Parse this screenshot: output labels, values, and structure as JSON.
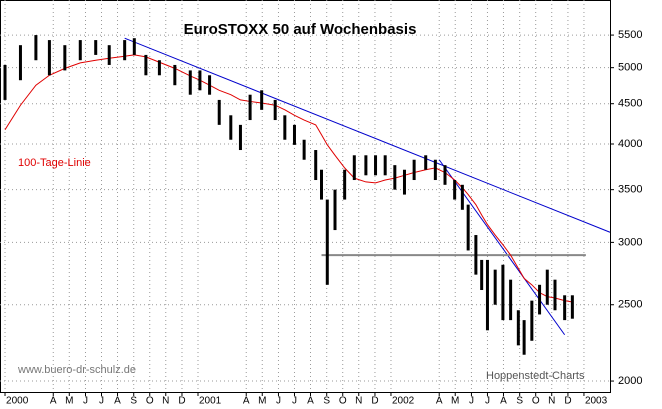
{
  "chart_data": {
    "type": "ohlc",
    "title": "EuroSTOXX 50 auf Wochenbasis",
    "x": [
      2000.0,
      2000.08,
      2000.16,
      2000.23,
      2000.31,
      2000.39,
      2000.47,
      2000.54,
      2000.62,
      2000.67,
      2000.73,
      2000.8,
      2000.88,
      2000.96,
      2001.01,
      2001.06,
      2001.11,
      2001.17,
      2001.22,
      2001.27,
      2001.33,
      2001.4,
      2001.45,
      2001.5,
      2001.55,
      2001.61,
      2001.64,
      2001.67,
      2001.71,
      2001.76,
      2001.81,
      2001.87,
      2001.92,
      2001.97,
      2002.02,
      2002.07,
      2002.12,
      2002.18,
      2002.23,
      2002.28,
      2002.33,
      2002.37,
      2002.4,
      2002.44,
      2002.47,
      2002.5,
      2002.54,
      2002.58,
      2002.62,
      2002.66,
      2002.69,
      2002.73,
      2002.77,
      2002.81,
      2002.85,
      2002.9,
      2002.94
    ],
    "high": [
      5040,
      5340,
      5500,
      5420,
      5340,
      5420,
      5420,
      5340,
      5420,
      5450,
      5190,
      5110,
      5040,
      4960,
      4960,
      4890,
      4550,
      4350,
      4230,
      4620,
      4680,
      4550,
      4350,
      4230,
      4050,
      3930,
      3710,
      3400,
      3500,
      3710,
      3870,
      3870,
      3870,
      3870,
      3760,
      3710,
      3820,
      3870,
      3820,
      3760,
      3600,
      3550,
      3350,
      3065,
      2850,
      2850,
      2770,
      2810,
      2690,
      2460,
      2390,
      2530,
      2650,
      2770,
      2690,
      2570,
      2570
    ],
    "low": [
      4550,
      4820,
      5110,
      4890,
      4960,
      5110,
      5190,
      5040,
      5110,
      5190,
      4890,
      4890,
      4750,
      4620,
      4680,
      4620,
      4230,
      4050,
      3930,
      4290,
      4420,
      4290,
      4050,
      3990,
      3820,
      3600,
      3400,
      2650,
      3110,
      3400,
      3600,
      3650,
      3650,
      3650,
      3500,
      3450,
      3600,
      3710,
      3600,
      3550,
      3400,
      3300,
      2930,
      2730,
      2610,
      2320,
      2500,
      2390,
      2390,
      2220,
      2160,
      2250,
      2430,
      2500,
      2460,
      2390,
      2400
    ],
    "color": "#000000",
    "moving_average": {
      "name": "100-Tage-Linie",
      "color": "#e00000",
      "values": [
        4170,
        4480,
        4750,
        4890,
        4990,
        5070,
        5110,
        5140,
        5170,
        5190,
        5160,
        5080,
        4990,
        4880,
        4820,
        4750,
        4680,
        4620,
        4550,
        4530,
        4510,
        4480,
        4420,
        4350,
        4290,
        4230,
        4110,
        3990,
        3870,
        3730,
        3620,
        3580,
        3570,
        3600,
        3620,
        3650,
        3680,
        3710,
        3730,
        3680,
        3600,
        3520,
        3450,
        3350,
        3250,
        3160,
        3065,
        2980,
        2890,
        2780,
        2700,
        2650,
        2590,
        2560,
        2550,
        2530,
        2520
      ]
    },
    "trend_lines": [
      {
        "color": "#0000cc",
        "x": [
          2000.62,
          2003.135
        ],
        "values": [
          5450,
          3090
        ]
      },
      {
        "color": "#0000cc",
        "x": [
          2002.25,
          2002.9
        ],
        "values": [
          3820,
          2290
        ]
      },
      {
        "color": "#888888",
        "x": [
          2001.64,
          2003.01
        ],
        "values": [
          2890,
          2890
        ]
      }
    ],
    "annotations": [
      "www.buero-dr-schulz.de",
      "Hoppenstedt-Charts"
    ],
    "xlim": [
      1999.974,
      2003.135
    ],
    "xticks": [
      2000,
      {
        "value": 2000.25,
        "label": "A"
      },
      {
        "value": 2000.333,
        "label": "M"
      },
      {
        "value": 2000.417,
        "label": "J"
      },
      {
        "value": 2000.5,
        "label": "J"
      },
      {
        "value": 2000.583,
        "label": "A"
      },
      {
        "value": 2000.667,
        "label": "S"
      },
      {
        "value": 2000.75,
        "label": "O"
      },
      {
        "value": 2000.833,
        "label": "N"
      },
      {
        "value": 2000.917,
        "label": "D"
      },
      2001,
      {
        "value": 2001.25,
        "label": "A"
      },
      {
        "value": 2001.333,
        "label": "M"
      },
      {
        "value": 2001.417,
        "label": "J"
      },
      {
        "value": 2001.5,
        "label": "J"
      },
      {
        "value": 2001.583,
        "label": "A"
      },
      {
        "value": 2001.667,
        "label": "S"
      },
      {
        "value": 2001.75,
        "label": "O"
      },
      {
        "value": 2001.833,
        "label": "N"
      },
      {
        "value": 2001.917,
        "label": "D"
      },
      2002,
      {
        "value": 2002.25,
        "label": "A"
      },
      {
        "value": 2002.333,
        "label": "M"
      },
      {
        "value": 2002.417,
        "label": "J"
      },
      {
        "value": 2002.5,
        "label": "J"
      },
      {
        "value": 2002.583,
        "label": "A"
      },
      {
        "value": 2002.667,
        "label": "S"
      },
      {
        "value": 2002.75,
        "label": "O"
      },
      {
        "value": 2002.833,
        "label": "N"
      },
      {
        "value": 2002.917,
        "label": "D"
      },
      2003
    ],
    "ylim": [
      1937,
      6094
    ],
    "yticks": [
      2000,
      2500,
      3000,
      3500,
      4000,
      4500,
      5000,
      5500
    ],
    "log_scale": true,
    "grid": true
  }
}
